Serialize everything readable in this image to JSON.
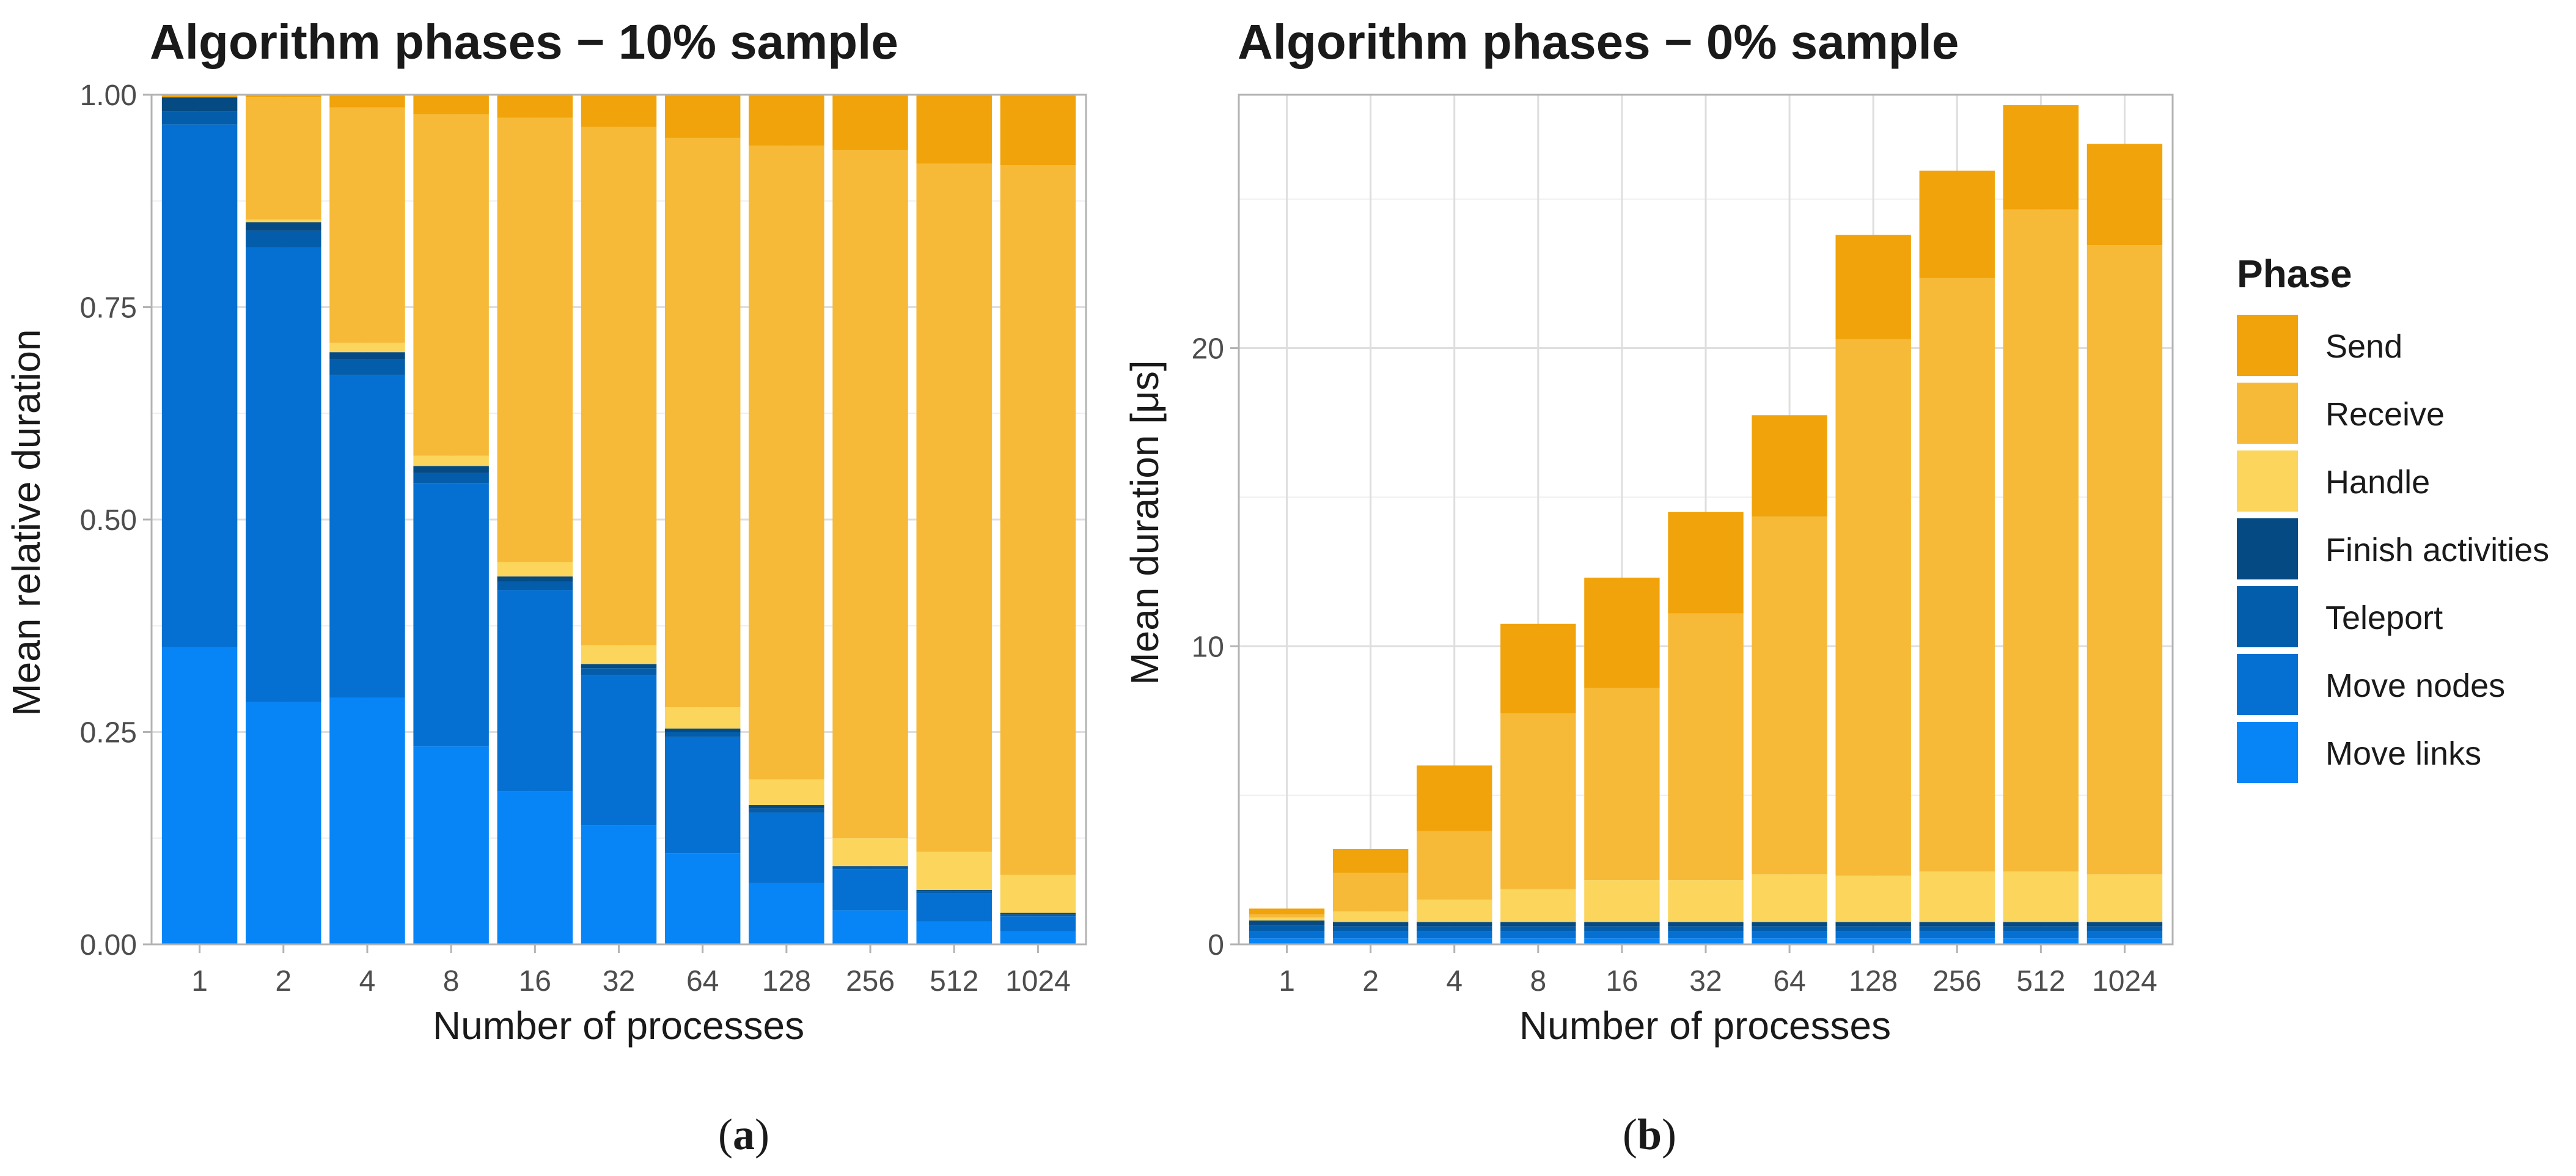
{
  "colors": {
    "Send": "#F0A30A",
    "Receive": "#F6BA38",
    "Handle": "#FBD55C",
    "Finish activities": "#054A82",
    "Teleport": "#045DAA",
    "Move nodes": "#0570D1",
    "Move links": "#0785F7"
  },
  "legend": {
    "title": "Phase",
    "items": [
      "Send",
      "Receive",
      "Handle",
      "Finish activities",
      "Teleport",
      "Move nodes",
      "Move links"
    ]
  },
  "captions": {
    "a": "a",
    "b": "b"
  },
  "chart_data": [
    {
      "type": "bar",
      "stacked": true,
      "title": "Algorithm phases − 10% sample",
      "xlabel": "Number of processes",
      "ylabel": "Mean relative duration",
      "ylim": [
        0,
        1
      ],
      "yticks": [
        "0.00",
        "0.25",
        "0.50",
        "0.75",
        "1.00"
      ],
      "ytick_values": [
        0,
        0.25,
        0.5,
        0.75,
        1.0
      ],
      "categories": [
        "1",
        "2",
        "4",
        "8",
        "16",
        "32",
        "64",
        "128",
        "256",
        "512",
        "1024"
      ],
      "series": [
        {
          "name": "Move links",
          "values": [
            0.35,
            0.285,
            0.29,
            0.233,
            0.18,
            0.14,
            0.107,
            0.072,
            0.04,
            0.027,
            0.015
          ]
        },
        {
          "name": "Move nodes",
          "values": [
            0.615,
            0.535,
            0.38,
            0.31,
            0.237,
            0.177,
            0.137,
            0.083,
            0.048,
            0.033,
            0.018
          ]
        },
        {
          "name": "Teleport",
          "values": [
            0.015,
            0.02,
            0.018,
            0.012,
            0.01,
            0.008,
            0.006,
            0.005,
            0.002,
            0.002,
            0.002
          ]
        },
        {
          "name": "Finish activities",
          "values": [
            0.017,
            0.01,
            0.009,
            0.008,
            0.006,
            0.005,
            0.004,
            0.004,
            0.002,
            0.002,
            0.002
          ]
        },
        {
          "name": "Handle",
          "values": [
            0.0,
            0.003,
            0.011,
            0.012,
            0.017,
            0.022,
            0.025,
            0.03,
            0.033,
            0.045,
            0.045
          ]
        },
        {
          "name": "Receive",
          "values": [
            0.0,
            0.144,
            0.277,
            0.402,
            0.523,
            0.61,
            0.67,
            0.746,
            0.81,
            0.81,
            0.835
          ]
        },
        {
          "name": "Send",
          "values": [
            0.003,
            0.003,
            0.015,
            0.023,
            0.027,
            0.038,
            0.051,
            0.06,
            0.065,
            0.081,
            0.083
          ]
        }
      ]
    },
    {
      "type": "bar",
      "stacked": true,
      "title": "Algorithm phases − 0% sample",
      "xlabel": "Number of processes",
      "ylabel": "Mean duration [μs]",
      "ylim": [
        0,
        28.5
      ],
      "yticks": [
        "0",
        "10",
        "20"
      ],
      "ytick_values": [
        0,
        10,
        20
      ],
      "categories": [
        "1",
        "2",
        "4",
        "8",
        "16",
        "32",
        "64",
        "128",
        "256",
        "512",
        "1024"
      ],
      "series": [
        {
          "name": "Move links",
          "values": [
            0.2,
            0.2,
            0.2,
            0.2,
            0.2,
            0.2,
            0.2,
            0.2,
            0.2,
            0.2,
            0.2
          ]
        },
        {
          "name": "Move nodes",
          "values": [
            0.25,
            0.25,
            0.25,
            0.25,
            0.25,
            0.25,
            0.25,
            0.25,
            0.25,
            0.25,
            0.25
          ]
        },
        {
          "name": "Teleport",
          "values": [
            0.2,
            0.15,
            0.15,
            0.15,
            0.15,
            0.15,
            0.15,
            0.15,
            0.15,
            0.15,
            0.15
          ]
        },
        {
          "name": "Finish activities",
          "values": [
            0.15,
            0.15,
            0.15,
            0.15,
            0.15,
            0.15,
            0.15,
            0.15,
            0.15,
            0.15,
            0.15
          ]
        },
        {
          "name": "Handle",
          "values": [
            0.1,
            0.35,
            0.75,
            1.1,
            1.4,
            1.4,
            1.6,
            1.55,
            1.7,
            1.7,
            1.6
          ]
        },
        {
          "name": "Receive",
          "values": [
            0.1,
            1.3,
            2.3,
            5.9,
            6.45,
            8.95,
            12.0,
            18.0,
            19.9,
            22.2,
            21.1
          ]
        },
        {
          "name": "Send",
          "values": [
            0.2,
            0.8,
            2.2,
            3.0,
            3.7,
            3.4,
            3.4,
            3.5,
            3.6,
            3.5,
            3.4
          ]
        }
      ]
    }
  ]
}
